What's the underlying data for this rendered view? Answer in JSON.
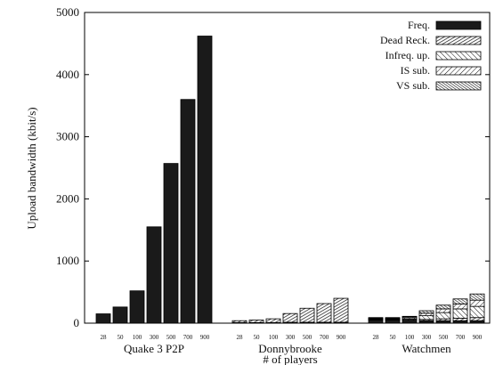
{
  "chart_data": {
    "type": "bar",
    "ylabel": "Upload bandwidth (kbit/s)",
    "xlabel": "# of players",
    "ylim": [
      0,
      5000
    ],
    "yticks": [
      0,
      1000,
      2000,
      3000,
      4000,
      5000
    ],
    "player_counts": [
      "28",
      "50",
      "100",
      "300",
      "500",
      "700",
      "900"
    ],
    "stacking": "stacked",
    "legend_position": "top-right",
    "series_names": [
      "Freq.",
      "Dead Reck.",
      "Infreq. up.",
      "IS sub.",
      "VS sub."
    ],
    "colors": {
      "bar_fill": "#1a1a1a",
      "hatch": "#111111",
      "background": "#ffffff"
    },
    "groups": [
      {
        "name": "Quake 3 P2P",
        "stacks": [
          {
            "players": "28",
            "values": [
              150,
              0,
              0,
              0,
              0
            ]
          },
          {
            "players": "50",
            "values": [
              260,
              0,
              0,
              0,
              0
            ]
          },
          {
            "players": "100",
            "values": [
              520,
              0,
              0,
              0,
              0
            ]
          },
          {
            "players": "300",
            "values": [
              1550,
              0,
              0,
              0,
              0
            ]
          },
          {
            "players": "500",
            "values": [
              2570,
              0,
              0,
              0,
              0
            ]
          },
          {
            "players": "700",
            "values": [
              3600,
              0,
              0,
              0,
              0
            ]
          },
          {
            "players": "900",
            "values": [
              4620,
              0,
              0,
              0,
              0
            ]
          }
        ]
      },
      {
        "name": "Donnybrooke",
        "stacks": [
          {
            "players": "28",
            "values": [
              10,
              30,
              0,
              0,
              0
            ]
          },
          {
            "players": "50",
            "values": [
              10,
              40,
              0,
              0,
              0
            ]
          },
          {
            "players": "100",
            "values": [
              10,
              60,
              0,
              0,
              0
            ]
          },
          {
            "players": "300",
            "values": [
              15,
              140,
              0,
              0,
              0
            ]
          },
          {
            "players": "500",
            "values": [
              15,
              225,
              0,
              0,
              0
            ]
          },
          {
            "players": "700",
            "values": [
              15,
              300,
              0,
              0,
              0
            ]
          },
          {
            "players": "900",
            "values": [
              15,
              385,
              0,
              0,
              0
            ]
          }
        ]
      },
      {
        "name": "Watchmen",
        "stacks": [
          {
            "players": "28",
            "values": [
              50,
              10,
              10,
              10,
              10
            ]
          },
          {
            "players": "50",
            "values": [
              50,
              10,
              10,
              10,
              10
            ]
          },
          {
            "players": "100",
            "values": [
              50,
              15,
              20,
              15,
              10
            ]
          },
          {
            "players": "300",
            "values": [
              40,
              20,
              60,
              40,
              40
            ]
          },
          {
            "players": "500",
            "values": [
              40,
              30,
              100,
              60,
              60
            ]
          },
          {
            "players": "700",
            "values": [
              40,
              40,
              150,
              80,
              80
            ]
          },
          {
            "players": "900",
            "values": [
              40,
              50,
              180,
              100,
              100
            ]
          }
        ]
      }
    ]
  }
}
